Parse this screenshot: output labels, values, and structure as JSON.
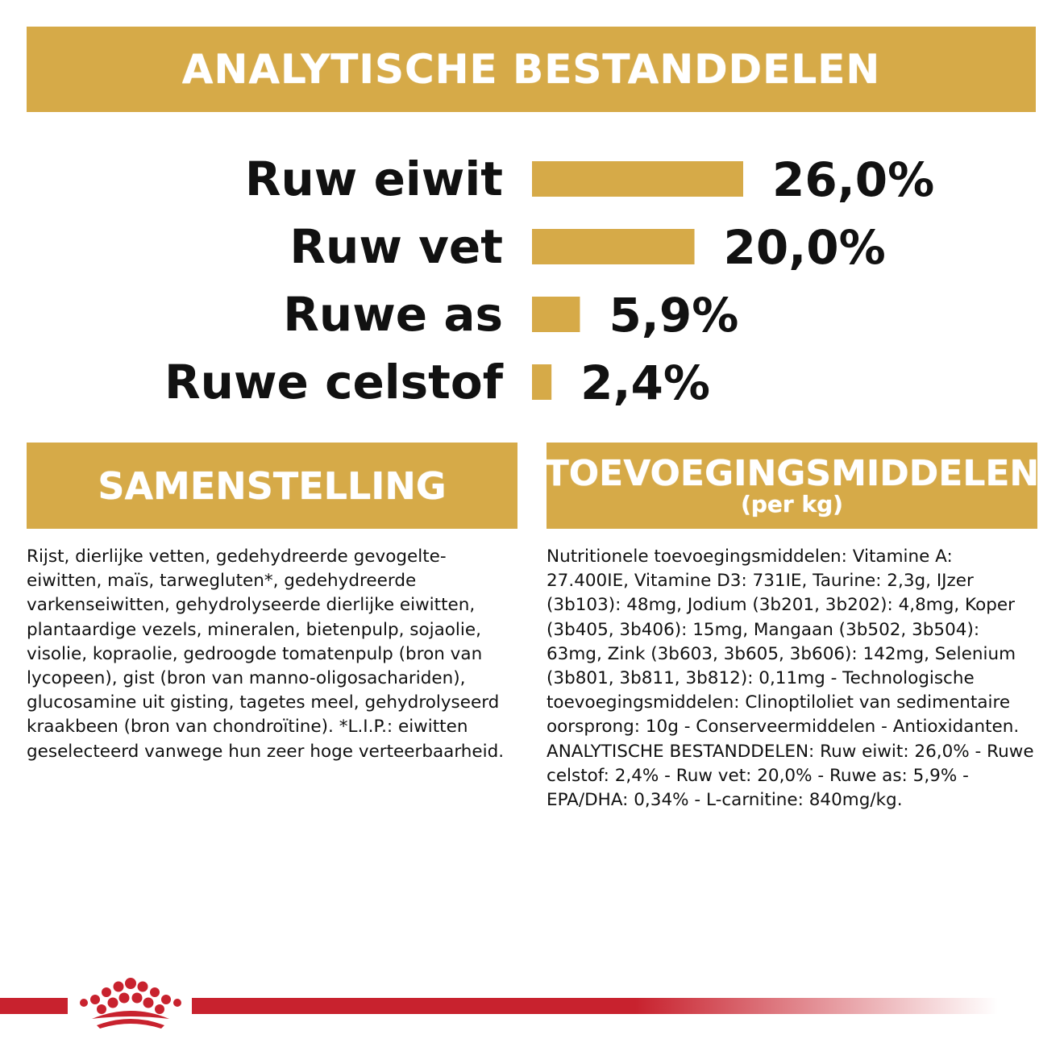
{
  "header": {
    "title": "ANALYTISCHE BESTANDDELEN"
  },
  "chart_data": {
    "type": "bar",
    "orientation": "horizontal",
    "categories": [
      "Ruw eiwit",
      "Ruw vet",
      "Ruwe as",
      "Ruwe celstof"
    ],
    "values": [
      26.0,
      20.0,
      5.9,
      2.4
    ],
    "value_labels": [
      "26,0%",
      "20,0%",
      "5,9%",
      "2,4%"
    ],
    "xlim": [
      0,
      26.0
    ],
    "title": "",
    "xlabel": "",
    "ylabel": "",
    "grid": false,
    "bar_color": "#d6aa48"
  },
  "samenstelling": {
    "title": "SAMENSTELLING",
    "text": "Rijst, dierlijke vetten, gedehydreerde gevogelte-eiwitten, maïs, tarwegluten*, gedehydreerde varkenseiwitten, gehydrolyseerde dierlijke eiwitten, plantaardige vezels, mineralen, bietenpulp, sojaolie, visolie, kopraolie, gedroogde tomatenpulp (bron van lycopeen), gist (bron van manno-oligosachariden), glucosamine uit gisting, tagetes meel, gehydrolyseerd kraakbeen (bron van chondroïtine). *L.I.P.: eiwitten geselecteerd vanwege hun zeer hoge verteerbaarheid."
  },
  "toevoegingsmiddelen": {
    "title": "TOEVOEGINGSMIDDELEN",
    "subtitle": "(per kg)",
    "text": "Nutritionele toevoegingsmiddelen: Vitamine A: 27.400IE, Vitamine D3: 731IE, Taurine: 2,3g, IJzer (3b103): 48mg, Jodium (3b201, 3b202): 4,8mg, Koper (3b405, 3b406): 15mg, Mangaan (3b502, 3b504): 63mg, Zink (3b603, 3b605, 3b606): 142mg, Selenium (3b801, 3b811, 3b812): 0,11mg - Technologische toevoegingsmiddelen: Clinoptiloliet van sedimentaire oorsprong: 10g - Conserveermiddelen - Antioxidanten. ANALYTISCHE BESTANDDELEN: Ruw eiwit: 26,0% - Ruwe celstof: 2,4% - Ruw vet: 20,0% - Ruwe as: 5,9% - EPA/DHA: 0,34% - L-carnitine: 840mg/kg."
  },
  "colors": {
    "accent": "#d6aa48",
    "brand_red": "#c8222e"
  },
  "footer": {
    "logo_icon": "crown-icon"
  }
}
